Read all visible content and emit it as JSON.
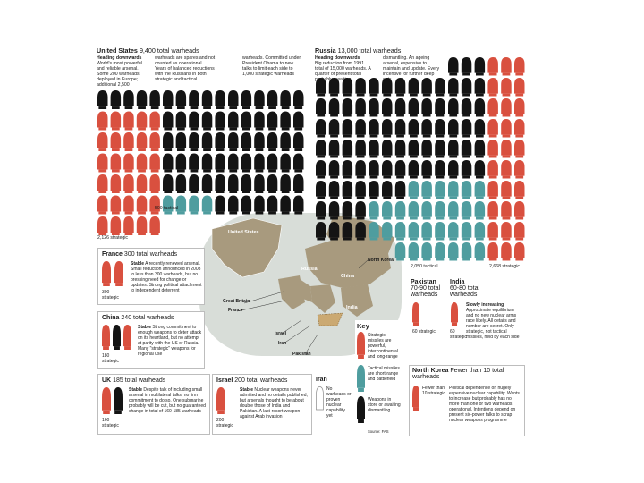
{
  "colors": {
    "strategic": "#d9503f",
    "tactical": "#4f9d9f",
    "stored": "#141414",
    "map_land": "#a89a7e",
    "map_sea": "#d8ddd8"
  },
  "us": {
    "heading": "United States",
    "heading_total": "9,400 total warheads",
    "blurb_title": "Heading downwards",
    "blurb_1": "World's most powerful and reliable arsenal. Some 200 warheads deployed in Europe; additional 2,500",
    "blurb_2": "warheads are spares and not counted as operational. Years of balanced reductions with the Russians in both strategic and tactical",
    "blurb_3": "warheads. Committed under President Obama to new talks to limit each side to 1,000 strategic warheads",
    "tactical_label": "500 tactical",
    "strategic_label": "2,126 strategic"
  },
  "russia": {
    "heading": "Russia",
    "heading_total": "13,000 total warheads",
    "blurb_title": "Heading downwards",
    "blurb_1": "Big reduction from 1991 total of 15,000 warheads. A quarter of present total probably awaiting",
    "blurb_2": "dismantling. An ageing arsenal, expensive to maintain and update. Every incentive for further deep cuts",
    "tactical_label": "2,050 tactical",
    "strategic_label": "2,668 strategic"
  },
  "france": {
    "title": "France",
    "total": "300 total warheads",
    "status": "Stable",
    "text": "A recently renewed arsenal. Small reduction announced in 2008 to less than 300 warheads, but no pressing need for change or updates. Strong political attachment to independent deterrent",
    "label": "300 strategic"
  },
  "china": {
    "title": "China",
    "total": "240 total warheads",
    "status": "Stable",
    "text": "Strong commitment to enough weapons to deter attack on its heartland, but no attempt at parity with the US or Russia. Many \"strategic\" weapons for regional use",
    "label": "180 strategic"
  },
  "uk": {
    "title": "UK",
    "total": "185 total warheads",
    "status": "Stable",
    "text": "Despite talk of including small arsenal in multilateral talks, no firm commitment to do so. One submarine probably will be cut, but no guaranteed change in total of 160-185 warheads",
    "label": "160 strategic"
  },
  "israel": {
    "title": "Israel",
    "total": "200 total warheads",
    "status": "Stable",
    "text": "Nuclear weapons never admitted and no details published, but arsenals thought to be about double those of India and Pakistan. A last-resort weapon against Arab invasion",
    "label": "200 strategic"
  },
  "iran": {
    "title": "Iran",
    "text": "No warheads or proven nuclear capability yet"
  },
  "pakistan": {
    "title": "Pakistan",
    "total": "70-90 total warheads",
    "label": "60 strategic"
  },
  "india": {
    "title": "India",
    "total": "60-80 total warheads",
    "label": "60 strategic",
    "status": "Slowly increasing",
    "text": "Approximate equilibrium and no new nuclear arms race likely. All details and number are secret. Only strategic, not tactical missiles, held by each side"
  },
  "north_korea": {
    "title": "North Korea",
    "total": "Fewer than 10 total warheads",
    "label": "Fewer than 10 strategic",
    "text": "Political dependence on hugely expensive nuclear capability. Wants to increase but probably has no more than one or two warheads operational. Intentions depend on present six-power talks to scrap nuclear weapons programme"
  },
  "key": {
    "title": "Key",
    "strategic": "Strategic missiles are powerful, intercontinental and long-range",
    "tactical": "Tactical missiles are short-range and battlefield",
    "stored": "Weapons in store or awaiting dismantling",
    "source": "Source: FAS"
  },
  "map_labels": {
    "us": "United States",
    "russia": "Russia",
    "china": "China",
    "india": "India",
    "north_korea": "North Korea",
    "great_britain": "Great Britain",
    "france": "France",
    "israel": "Israel",
    "iran": "Iran",
    "pakistan": "Pakistan"
  },
  "chart_data": {
    "type": "table",
    "title": "",
    "columns": [
      "country",
      "total warheads",
      "strategic",
      "tactical",
      "status"
    ],
    "rows": [
      [
        "United States",
        "9,400",
        "2,126",
        "500",
        "Heading downwards"
      ],
      [
        "Russia",
        "13,000",
        "2,668",
        "2,050",
        "Heading downwards"
      ],
      [
        "France",
        "300",
        "300",
        "",
        "Stable"
      ],
      [
        "China",
        "240",
        "180",
        "",
        "Stable"
      ],
      [
        "UK",
        "185",
        "160",
        "",
        "Stable"
      ],
      [
        "Israel",
        "200",
        "200",
        "",
        "Stable"
      ],
      [
        "Pakistan",
        "70-90",
        "60",
        "",
        ""
      ],
      [
        "India",
        "60-80",
        "60",
        "",
        "Slowly increasing"
      ],
      [
        "North Korea",
        "Fewer than 10",
        "Fewer than 10",
        "",
        ""
      ],
      [
        "Iran",
        "No warheads",
        "",
        "",
        ""
      ]
    ]
  }
}
